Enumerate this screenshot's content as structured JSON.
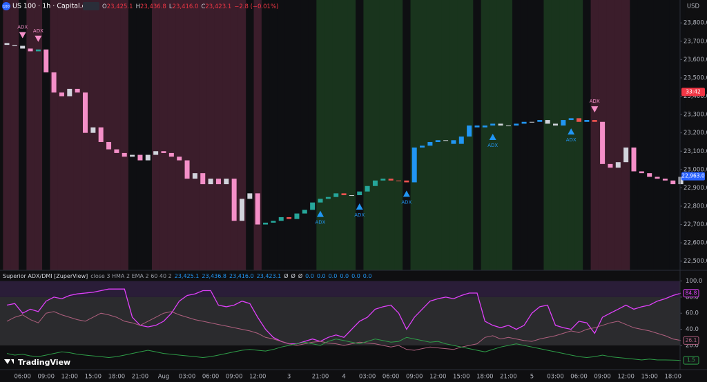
{
  "header": {
    "icon": "100",
    "symbol": "US 100 · 1h · Capital.com",
    "ohlc": [
      {
        "key": "O",
        "value": "23,425.1"
      },
      {
        "key": "H",
        "value": "23,436.8"
      },
      {
        "key": "L",
        "value": "23,416.0"
      },
      {
        "key": "C",
        "value": "23,423.1"
      }
    ],
    "change": "−2.8 (−0.01%)",
    "currency": "USD",
    "logo": "TradingView"
  },
  "chart_data": [
    {
      "type": "candlestick",
      "categories": [
        null,
        null,
        "06:00",
        null,
        null,
        "09:00",
        null,
        null,
        "12:00",
        null,
        null,
        "15:00",
        null,
        null,
        "18:00",
        null,
        null,
        "21:00",
        null,
        null,
        "Aug",
        null,
        null,
        "03:00",
        null,
        null,
        "06:00",
        null,
        null,
        "09:00",
        null,
        null,
        "12:00",
        null,
        null,
        null,
        "3",
        null,
        null,
        null,
        "21:00",
        null,
        null,
        "4",
        null,
        null,
        "03:00",
        null,
        null,
        "06:00",
        null,
        null,
        "09:00",
        null,
        null,
        "12:00",
        null,
        null,
        "15:00",
        null,
        null,
        "18:00",
        null,
        null,
        "21:00",
        null,
        null,
        "5",
        null,
        null,
        "03:00",
        null,
        null,
        "06:00",
        null,
        null,
        "09:00",
        null,
        null,
        "12:00",
        null,
        null,
        "15:00",
        null,
        null,
        "18:00",
        null
      ],
      "open": [
        23690,
        23680,
        23675,
        23660,
        23645,
        23655,
        23530,
        23420,
        23400,
        23440,
        23420,
        23200,
        23230,
        23150,
        23110,
        23090,
        23070,
        23080,
        23050,
        23080,
        23100,
        23090,
        23070,
        23050,
        22950,
        22980,
        22920,
        22950,
        22920,
        22950,
        22720,
        22840,
        22870,
        22700,
        22710,
        22720,
        22740,
        22730,
        22760,
        22780,
        22820,
        22840,
        22850,
        22870,
        22860,
        22860,
        22880,
        22910,
        22940,
        22950,
        22940,
        22940,
        22930,
        23120,
        23130,
        23150,
        23160,
        23160,
        23140,
        23180,
        23240,
        23230,
        23240,
        23250,
        23240,
        23240,
        23250,
        23260,
        23260,
        23270,
        23250,
        23240,
        23270,
        23280,
        23260,
        23270,
        23260,
        23030,
        23010,
        23040,
        23120,
        22990,
        22980,
        22960,
        22950,
        22940,
        22920
      ],
      "close": [
        23680,
        23675,
        23660,
        23645,
        23655,
        23530,
        23420,
        23400,
        23440,
        23420,
        23200,
        23230,
        23150,
        23110,
        23090,
        23070,
        23080,
        23050,
        23080,
        23100,
        23090,
        23070,
        23050,
        22950,
        22980,
        22920,
        22950,
        22920,
        22950,
        22720,
        22840,
        22870,
        22700,
        22710,
        22720,
        22740,
        22730,
        22760,
        22780,
        22820,
        22840,
        22850,
        22870,
        22860,
        22860,
        22880,
        22910,
        22940,
        22950,
        22940,
        22940,
        22930,
        23120,
        23130,
        23150,
        23160,
        23160,
        23140,
        23180,
        23240,
        23230,
        23240,
        23250,
        23240,
        23240,
        23250,
        23260,
        23260,
        23270,
        23250,
        23240,
        23270,
        23280,
        23260,
        23270,
        23260,
        23030,
        23010,
        23040,
        23120,
        22990,
        22980,
        22960,
        22950,
        22940,
        22920,
        22960
      ],
      "colors": [
        "#d1d4dc",
        "#d1d4dc",
        "#d1d4dc",
        "#f48fc8",
        "#26a69a",
        "#f48fc8",
        "#f48fc8",
        "#f48fc8",
        "#d1d4dc",
        "#f48fc8",
        "#f48fc8",
        "#d1d4dc",
        "#f48fc8",
        "#f48fc8",
        "#f48fc8",
        "#f48fc8",
        "#d1d4dc",
        "#f48fc8",
        "#d1d4dc",
        "#d1d4dc",
        "#f48fc8",
        "#f48fc8",
        "#f48fc8",
        "#f48fc8",
        "#d1d4dc",
        "#f48fc8",
        "#d1d4dc",
        "#f48fc8",
        "#d1d4dc",
        "#f48fc8",
        "#d1d4dc",
        "#d1d4dc",
        "#f48fc8",
        "#26a69a",
        "#26a69a",
        "#26a69a",
        "#ef5350",
        "#26a69a",
        "#26a69a",
        "#26a69a",
        "#26a69a",
        "#26a69a",
        "#26a69a",
        "#ef5350",
        "#d1d4dc",
        "#26a69a",
        "#26a69a",
        "#26a69a",
        "#26a69a",
        "#ef5350",
        "#ef5350",
        "#ef5350",
        "#2196f3",
        "#2196f3",
        "#2196f3",
        "#2196f3",
        "#d1d4dc",
        "#2196f3",
        "#2196f3",
        "#2196f3",
        "#2196f3",
        "#2196f3",
        "#2196f3",
        "#d1d4dc",
        "#d1d4dc",
        "#2196f3",
        "#2196f3",
        "#d1d4dc",
        "#2196f3",
        "#d1d4dc",
        "#d1d4dc",
        "#2196f3",
        "#2196f3",
        "#ef5350",
        "#2196f3",
        "#ef5350",
        "#f48fc8",
        "#f48fc8",
        "#d1d4dc",
        "#d1d4dc",
        "#f48fc8",
        "#f48fc8",
        "#f48fc8",
        "#f48fc8",
        "#f48fc8",
        "#f48fc8",
        "#d1d4dc"
      ],
      "band_colors": [
        "#3b1d2b",
        "#3b1d2b",
        "#0e0f12",
        "#3b1d2b",
        "#3b1d2b",
        "#0e0f12",
        "#3b1d2b",
        "#3b1d2b",
        "#3b1d2b",
        "#3b1d2b",
        "#3b1d2b",
        "#3b1d2b",
        "#3b1d2b",
        "#3b1d2b",
        "#3b1d2b",
        "#3b1d2b",
        "#0e0f12",
        "#0e0f12",
        "#0e0f12",
        "#3b1d2b",
        "#3b1d2b",
        "#3b1d2b",
        "#3b1d2b",
        "#3b1d2b",
        "#3b1d2b",
        "#3b1d2b",
        "#3b1d2b",
        "#3b1d2b",
        "#3b1d2b",
        "#3b1d2b",
        "#3b1d2b",
        "#0e0f12",
        "#3b1d2b",
        "#0e0f12",
        "#0e0f12",
        "#0e0f12",
        "#0e0f12",
        "#0e0f12",
        "#0e0f12",
        "#0e0f12",
        "#19341d",
        "#19341d",
        "#19341d",
        "#19341d",
        "#19341d",
        "#0e0f12",
        "#19341d",
        "#19341d",
        "#19341d",
        "#19341d",
        "#19341d",
        "#0e0f12",
        "#19341d",
        "#19341d",
        "#19341d",
        "#19341d",
        "#19341d",
        "#19341d",
        "#19341d",
        "#19341d",
        "#0e0f12",
        "#19341d",
        "#19341d",
        "#19341d",
        "#19341d",
        "#0e0f12",
        "#0e0f12",
        "#0e0f12",
        "#0e0f12",
        "#19341d",
        "#19341d",
        "#19341d",
        "#19341d",
        "#19341d",
        "#0e0f12",
        "#3b1d2b",
        "#3b1d2b",
        "#3b1d2b",
        "#3b1d2b",
        "#3b1d2b",
        "#0e0f12",
        "#0e0f12",
        "#0e0f12",
        "#0e0f12",
        "#0e0f12",
        "#0e0f12",
        "#0e0f12"
      ],
      "signals_up": [
        null,
        null,
        null,
        null,
        null,
        null,
        null,
        null,
        null,
        null,
        null,
        null,
        null,
        null,
        null,
        null,
        null,
        null,
        null,
        null,
        null,
        null,
        null,
        null,
        null,
        null,
        null,
        null,
        null,
        null,
        null,
        null,
        null,
        null,
        null,
        null,
        null,
        null,
        null,
        null,
        "ADX",
        null,
        null,
        null,
        null,
        "ADX",
        null,
        null,
        null,
        null,
        null,
        "ADX",
        null,
        null,
        null,
        null,
        null,
        null,
        null,
        null,
        null,
        null,
        "ADX",
        null,
        null,
        null,
        null,
        null,
        null,
        null,
        null,
        null,
        "ADX",
        null,
        null,
        null,
        null,
        null,
        null,
        null,
        null,
        null,
        null,
        null,
        null,
        null,
        null
      ],
      "signals_down": [
        null,
        null,
        "ADX",
        null,
        "ADX",
        null,
        null,
        null,
        null,
        null,
        null,
        null,
        null,
        null,
        null,
        null,
        null,
        null,
        null,
        null,
        null,
        null,
        null,
        null,
        null,
        null,
        null,
        null,
        null,
        null,
        null,
        null,
        null,
        null,
        null,
        null,
        null,
        null,
        null,
        null,
        null,
        null,
        null,
        null,
        null,
        null,
        null,
        null,
        null,
        null,
        null,
        null,
        null,
        null,
        null,
        null,
        null,
        null,
        null,
        null,
        null,
        null,
        null,
        null,
        null,
        null,
        null,
        null,
        null,
        null,
        null,
        null,
        null,
        null,
        null,
        "ADX",
        null,
        null,
        null,
        null,
        null,
        null,
        null,
        null,
        null,
        null,
        null
      ],
      "signal_colors": {
        "up": "#2196f3",
        "down": "#f48fc8"
      },
      "ylim": [
        22450,
        23925
      ],
      "yticks": [
        {
          "value": 22500,
          "label": "22,500.0"
        },
        {
          "value": 22600,
          "label": "22,600.0"
        },
        {
          "value": 22700,
          "label": "22,700.0"
        },
        {
          "value": 22800,
          "label": "22,800.0"
        },
        {
          "value": 22900,
          "label": "22,900.0"
        },
        {
          "value": 23000,
          "label": "23,000.0"
        },
        {
          "value": 23100,
          "label": "23,100.0"
        },
        {
          "value": 23200,
          "label": "23,200.0"
        },
        {
          "value": 23300,
          "label": "23,300.0"
        },
        {
          "value": 23400,
          "label": "23,400.0"
        },
        {
          "value": 23500,
          "label": "23,500.0"
        },
        {
          "value": 23600,
          "label": "23,600.0"
        },
        {
          "value": 23700,
          "label": "23,700.0"
        },
        {
          "value": 23800,
          "label": "23,800.0"
        }
      ],
      "price_markers": [
        {
          "value": 23423.1,
          "label": "33:42",
          "color": "#f23645"
        },
        {
          "value": 22963,
          "label": "22,963.0",
          "color": "#2962ff"
        }
      ]
    },
    {
      "type": "line",
      "title": "Superior ADX/DMI [ZuperView]",
      "settings": "close 3 HMA 2 EMA 2 60 40 2",
      "readouts": [
        "23,425.1",
        "23,436.8",
        "23,416.0",
        "23,423.1",
        "Ø",
        "Ø",
        "Ø",
        "0.0",
        "0.0",
        "0.0",
        "0.0",
        "0.0",
        "0.0"
      ],
      "ylim": [
        -10,
        103
      ],
      "yticks": [
        {
          "value": 20,
          "label": "20.0"
        },
        {
          "value": 40,
          "label": "40.0"
        },
        {
          "value": 60,
          "label": "60.0"
        },
        {
          "value": 80,
          "label": "80.0"
        },
        {
          "value": 100,
          "label": "100.0"
        }
      ],
      "series": [
        {
          "color": "#e040fb",
          "values": [
            70,
            72,
            60,
            65,
            62,
            75,
            80,
            78,
            82,
            84,
            85,
            86,
            88,
            90,
            90,
            90,
            55,
            45,
            43,
            45,
            50,
            60,
            75,
            82,
            84,
            88,
            88,
            70,
            68,
            70,
            75,
            72,
            55,
            40,
            30,
            25,
            22,
            22,
            25,
            28,
            25,
            30,
            33,
            30,
            40,
            50,
            55,
            65,
            68,
            70,
            60,
            40,
            55,
            65,
            75,
            78,
            80,
            78,
            82,
            85,
            85,
            50,
            45,
            42,
            45,
            40,
            45,
            60,
            68,
            70,
            45,
            42,
            40,
            50,
            48,
            35,
            55,
            60,
            65,
            70,
            65,
            68,
            70,
            75,
            78,
            82,
            84.8
          ]
        },
        {
          "color": "#b0607f",
          "values": [
            50,
            55,
            58,
            52,
            48,
            60,
            62,
            58,
            55,
            52,
            50,
            55,
            60,
            58,
            55,
            50,
            48,
            45,
            50,
            55,
            60,
            62,
            58,
            55,
            52,
            50,
            48,
            46,
            44,
            42,
            40,
            38,
            35,
            30,
            28,
            25,
            22,
            20,
            22,
            24,
            25,
            23,
            22,
            20,
            22,
            24,
            23,
            22,
            20,
            18,
            20,
            15,
            14,
            16,
            18,
            17,
            16,
            15,
            18,
            20,
            22,
            30,
            32,
            28,
            30,
            28,
            26,
            25,
            28,
            30,
            32,
            35,
            38,
            36,
            40,
            42,
            45,
            48,
            50,
            46,
            42,
            40,
            38,
            35,
            32,
            28,
            26.1
          ]
        },
        {
          "color": "#2e9d48",
          "values": [
            10,
            8,
            9,
            7,
            6,
            8,
            10,
            12,
            11,
            9,
            8,
            7,
            6,
            5,
            6,
            8,
            10,
            12,
            14,
            12,
            10,
            9,
            8,
            7,
            6,
            5,
            6,
            8,
            10,
            12,
            14,
            15,
            14,
            13,
            15,
            18,
            20,
            22,
            24,
            22,
            20,
            25,
            28,
            26,
            24,
            22,
            25,
            28,
            26,
            24,
            25,
            30,
            28,
            26,
            24,
            25,
            22,
            20,
            18,
            16,
            14,
            12,
            15,
            18,
            20,
            22,
            20,
            18,
            16,
            14,
            12,
            10,
            8,
            6,
            5,
            6,
            8,
            6,
            5,
            4,
            3,
            2,
            3,
            2,
            2,
            1.8,
            1.5
          ]
        }
      ]
    }
  ]
}
